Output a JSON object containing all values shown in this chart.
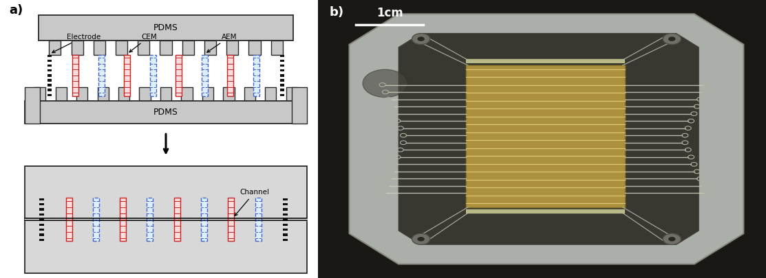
{
  "fig_width": 11.13,
  "fig_height": 4.05,
  "dpi": 100,
  "panel_a_label": "a)",
  "panel_b_label": "b)",
  "pdms_top_label": "PDMS",
  "pdms_bottom_label": "PDMS",
  "electrode_label": "Electrode",
  "cem_label": "CEM",
  "aem_label": "AEM",
  "channel_label": "Channel",
  "scale_bar_label": "1cm",
  "bg_color": "#ffffff",
  "pdms_color": "#c8c8c8",
  "pdms_edge_color": "#2a2a2a",
  "box_color": "#d8d8d8",
  "box_edge_color": "#2a2a2a",
  "electrode_color": "#111111",
  "cem_color_fill": "#ffdddd",
  "cem_color_line": "#cc2222",
  "aem_color_fill": "#ddeeff",
  "aem_color_line": "#4466cc",
  "channel_line_color": "#ffffff",
  "arrow_color": "#111111",
  "photo_bg": "#1a1814",
  "photo_device_light": "#c8cac8",
  "photo_device_mid": "#a0a098",
  "photo_inner_dark": "#3a3830",
  "photo_channel_gold": "#c8a855",
  "photo_wire_color": "#d8d8d0",
  "photo_circle_color": "#505048"
}
